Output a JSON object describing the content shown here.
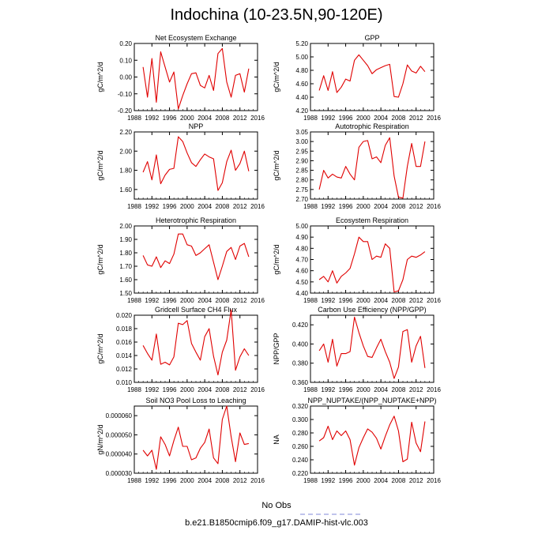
{
  "title": "Indochina (10-23.5N,90-120E)",
  "colors": {
    "model": "#e00000",
    "obs": "#9aa0e0",
    "axis": "#000000"
  },
  "legend": {
    "obs_label": "No Obs",
    "model_label": "b.e21.B1850cmip6.f09_g17.DAMIP-hist-vlc.003"
  },
  "x_years": [
    1990,
    1991,
    1992,
    1993,
    1994,
    1995,
    1996,
    1997,
    1998,
    1999,
    2000,
    2001,
    2002,
    2003,
    2004,
    2005,
    2006,
    2007,
    2008,
    2009,
    2010,
    2011,
    2012,
    2013,
    2014
  ],
  "chart_data": [
    {
      "type": "line",
      "title": "Net Ecosystem Exchange",
      "ylabel": "gC/m^2/d",
      "xlim": [
        1988,
        2016
      ],
      "xticks": [
        "1988",
        "1992",
        "1996",
        "2000",
        "2004",
        "2008",
        "2012",
        "2016"
      ],
      "ylim": [
        -0.2,
        0.2
      ],
      "yticks": [
        "-0.20",
        "-0.10",
        "0.00",
        "0.10",
        "0.20"
      ],
      "series": [
        {
          "values": [
            0.06,
            -0.12,
            0.11,
            -0.15,
            0.15,
            0.06,
            -0.03,
            0.03,
            -0.19,
            -0.11,
            -0.04,
            0.02,
            0.025,
            -0.05,
            -0.065,
            0.01,
            -0.08,
            0.14,
            0.17,
            -0.03,
            -0.12,
            0.01,
            0.02,
            -0.09,
            0.05
          ]
        }
      ]
    },
    {
      "type": "line",
      "title": "GPP",
      "ylabel": "gC/m^2/d",
      "xlim": [
        1988,
        2016
      ],
      "xticks": [
        "1988",
        "1992",
        "1996",
        "2000",
        "2004",
        "2008",
        "2012",
        "2016"
      ],
      "ylim": [
        4.2,
        5.2
      ],
      "yticks": [
        "4.20",
        "4.40",
        "4.60",
        "4.80",
        "5.00",
        "5.20"
      ],
      "series": [
        {
          "values": [
            4.5,
            4.72,
            4.5,
            4.78,
            4.47,
            4.55,
            4.67,
            4.64,
            4.95,
            5.03,
            4.95,
            4.87,
            4.75,
            4.81,
            4.84,
            4.87,
            4.89,
            4.41,
            4.4,
            4.6,
            4.88,
            4.79,
            4.76,
            4.86,
            4.78
          ]
        }
      ]
    },
    {
      "type": "line",
      "title": "NPP",
      "ylabel": "gC/m^2/d",
      "xlim": [
        1988,
        2016
      ],
      "xticks": [
        "1988",
        "1992",
        "1996",
        "2000",
        "2004",
        "2008",
        "2012",
        "2016"
      ],
      "ylim": [
        1.5,
        2.2
      ],
      "yticks": [
        "1.60",
        "1.80",
        "2.00",
        "2.20"
      ],
      "series": [
        {
          "values": [
            1.78,
            1.89,
            1.7,
            1.96,
            1.66,
            1.75,
            1.81,
            1.82,
            2.15,
            2.1,
            1.98,
            1.88,
            1.84,
            1.91,
            1.97,
            1.94,
            1.92,
            1.59,
            1.67,
            1.89,
            2.01,
            1.8,
            1.87,
            2,
            1.79
          ]
        }
      ]
    },
    {
      "type": "line",
      "title": "Autotrophic Respiration",
      "ylabel": "gC/m^2/d",
      "xlim": [
        1988,
        2016
      ],
      "xticks": [
        "1988",
        "1992",
        "1996",
        "2000",
        "2004",
        "2008",
        "2012",
        "2016"
      ],
      "ylim": [
        2.7,
        3.05
      ],
      "yticks": [
        "2.70",
        "2.75",
        "2.80",
        "2.85",
        "2.90",
        "2.95",
        "3.00",
        "3.05"
      ],
      "series": [
        {
          "values": [
            2.75,
            2.85,
            2.81,
            2.83,
            2.815,
            2.81,
            2.87,
            2.83,
            2.8,
            2.97,
            3,
            3.005,
            2.91,
            2.92,
            2.89,
            2.98,
            3.02,
            2.82,
            2.71,
            2.705,
            2.87,
            2.99,
            2.87,
            2.87,
            3
          ]
        }
      ]
    },
    {
      "type": "line",
      "title": "Heterotrophic Respiration",
      "ylabel": "gC/m^2/d",
      "xlim": [
        1988,
        2016
      ],
      "xticks": [
        "1988",
        "1992",
        "1996",
        "2000",
        "2004",
        "2008",
        "2012",
        "2016"
      ],
      "ylim": [
        1.5,
        2.0
      ],
      "yticks": [
        "1.50",
        "1.60",
        "1.70",
        "1.80",
        "1.90",
        "2.00"
      ],
      "series": [
        {
          "values": [
            1.78,
            1.71,
            1.7,
            1.77,
            1.69,
            1.74,
            1.72,
            1.79,
            1.94,
            1.94,
            1.86,
            1.85,
            1.78,
            1.8,
            1.83,
            1.86,
            1.73,
            1.6,
            1.7,
            1.81,
            1.84,
            1.75,
            1.85,
            1.87,
            1.77
          ]
        }
      ]
    },
    {
      "type": "line",
      "title": "Ecosystem Respiration",
      "ylabel": "gC/m^2/d",
      "xlim": [
        1988,
        2016
      ],
      "xticks": [
        "1988",
        "1992",
        "1996",
        "2000",
        "2004",
        "2008",
        "2012",
        "2016"
      ],
      "ylim": [
        4.4,
        5.0
      ],
      "yticks": [
        "4.40",
        "4.50",
        "4.60",
        "4.70",
        "4.80",
        "4.90",
        "5.00"
      ],
      "series": [
        {
          "values": [
            4.52,
            4.55,
            4.5,
            4.6,
            4.49,
            4.55,
            4.58,
            4.62,
            4.75,
            4.9,
            4.86,
            4.86,
            4.7,
            4.73,
            4.72,
            4.84,
            4.8,
            4.41,
            4.42,
            4.52,
            4.7,
            4.73,
            4.72,
            4.74,
            4.77
          ]
        }
      ]
    },
    {
      "type": "line",
      "title": "Gridcell Surface CH4 Flux",
      "ylabel": "gC/m^2/d",
      "xlim": [
        1988,
        2016
      ],
      "xticks": [
        "1988",
        "1992",
        "1996",
        "2000",
        "2004",
        "2008",
        "2012",
        "2016"
      ],
      "ylim": [
        0.01,
        0.02
      ],
      "yticks": [
        "0.010",
        "0.012",
        "0.014",
        "0.016",
        "0.018",
        "0.020"
      ],
      "series": [
        {
          "values": [
            0.0155,
            0.0143,
            0.0133,
            0.0172,
            0.0127,
            0.013,
            0.0126,
            0.0138,
            0.0188,
            0.0186,
            0.0192,
            0.0158,
            0.0145,
            0.0133,
            0.0168,
            0.018,
            0.0139,
            0.0111,
            0.0145,
            0.0163,
            0.0208,
            0.0118,
            0.0138,
            0.015,
            0.014
          ]
        }
      ]
    },
    {
      "type": "line",
      "title": "Carbon Use Efficiency (NPP/GPP)",
      "ylabel": "NPP/GPP",
      "xlim": [
        1988,
        2016
      ],
      "xticks": [
        "1988",
        "1992",
        "1996",
        "2000",
        "2004",
        "2008",
        "2012",
        "2016"
      ],
      "ylim": [
        0.36,
        0.43
      ],
      "yticks": [
        "0.360",
        "0.380",
        "0.400",
        "0.420"
      ],
      "series": [
        {
          "values": [
            0.393,
            0.4,
            0.381,
            0.405,
            0.377,
            0.39,
            0.39,
            0.392,
            0.428,
            0.412,
            0.398,
            0.387,
            0.386,
            0.396,
            0.405,
            0.392,
            0.381,
            0.364,
            0.376,
            0.413,
            0.415,
            0.381,
            0.398,
            0.408,
            0.375
          ]
        }
      ]
    },
    {
      "type": "line",
      "title": "Soil NO3 Pool Loss to Leaching",
      "ylabel": "gN/m^2/d",
      "xlim": [
        1988,
        2016
      ],
      "xticks": [
        "1988",
        "1992",
        "1996",
        "2000",
        "2004",
        "2008",
        "2012",
        "2016"
      ],
      "ylim": [
        3e-05,
        6.5e-05
      ],
      "yticks": [
        "0.000030",
        "0.000040",
        "0.000050",
        "0.000060"
      ],
      "series": [
        {
          "values": [
            4.2e-05,
            3.9e-05,
            4.2e-05,
            3.2e-05,
            4.9e-05,
            4.5e-05,
            3.9e-05,
            4.7e-05,
            5.4e-05,
            4.4e-05,
            4.4e-05,
            3.7e-05,
            3.8e-05,
            4.3e-05,
            4.6e-05,
            5.3e-05,
            3.8e-05,
            3.5e-05,
            5.8e-05,
            6.5e-05,
            4.9e-05,
            3.6e-05,
            5.1e-05,
            4.5e-05,
            4.55e-05
          ]
        }
      ]
    },
    {
      "type": "line",
      "title": "NPP_NUPTAKE/(NPP_NUPTAKE+NPP)",
      "ylabel": "NA",
      "xlim": [
        1988,
        2016
      ],
      "xticks": [
        "1988",
        "1992",
        "1996",
        "2000",
        "2004",
        "2008",
        "2012",
        "2016"
      ],
      "ylim": [
        0.22,
        0.32
      ],
      "yticks": [
        "0.220",
        "0.240",
        "0.260",
        "0.280",
        "0.300",
        "0.320"
      ],
      "series": [
        {
          "values": [
            0.268,
            0.273,
            0.29,
            0.27,
            0.283,
            0.276,
            0.283,
            0.27,
            0.232,
            0.258,
            0.273,
            0.286,
            0.281,
            0.272,
            0.256,
            0.275,
            0.292,
            0.305,
            0.283,
            0.237,
            0.241,
            0.296,
            0.265,
            0.252,
            0.297
          ]
        }
      ]
    }
  ]
}
